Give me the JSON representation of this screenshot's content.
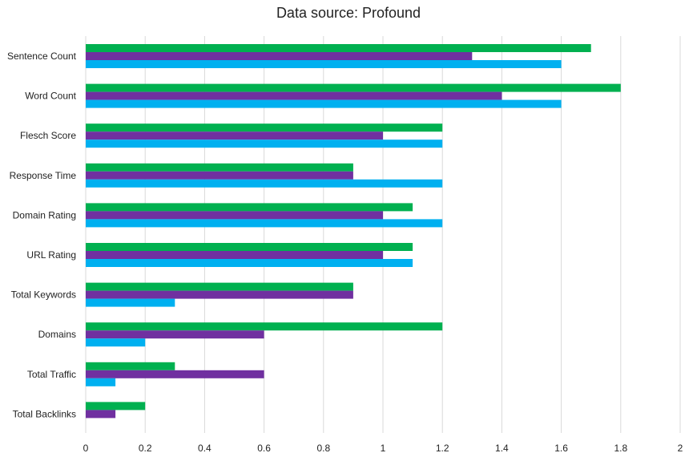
{
  "chart_data": {
    "type": "bar",
    "orientation": "horizontal",
    "title": "Data source: Profound",
    "xlabel": "",
    "ylabel": "",
    "xlim": [
      0,
      2
    ],
    "x_ticks": [
      "0",
      "0.2",
      "0.4",
      "0.6",
      "0.8",
      "1",
      "1.2",
      "1.4",
      "1.6",
      "1.8",
      "2"
    ],
    "grid": true,
    "legend": "none",
    "categories": [
      "Sentence Count",
      "Word Count",
      "Flesch Score",
      "Response Time",
      "Domain Rating",
      "URL Rating",
      "Total Keywords",
      "Domains",
      "Total Traffic",
      "Total Backlinks"
    ],
    "series": [
      {
        "color": "#00b050",
        "values": [
          1.7,
          1.8,
          1.2,
          0.9,
          1.1,
          1.1,
          0.9,
          1.2,
          0.3,
          0.2
        ]
      },
      {
        "color": "#7030a0",
        "values": [
          1.3,
          1.4,
          1.0,
          0.9,
          1.0,
          1.0,
          0.9,
          0.6,
          0.6,
          0.1
        ]
      },
      {
        "color": "#00b0f0",
        "values": [
          1.6,
          1.6,
          1.2,
          1.2,
          1.2,
          1.1,
          0.3,
          0.2,
          0.1,
          0
        ]
      }
    ]
  }
}
